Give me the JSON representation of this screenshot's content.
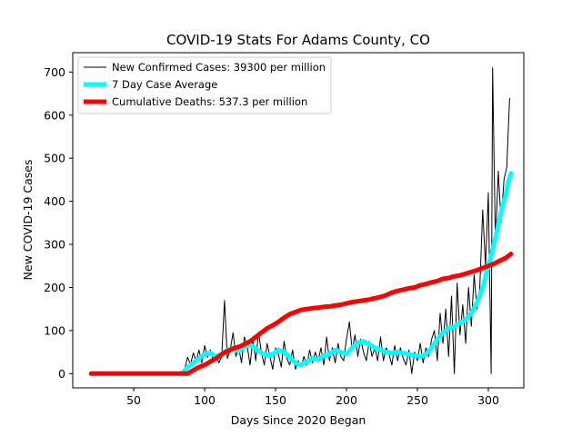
{
  "chart_data": {
    "type": "line",
    "title": "COVID-19 Stats For Adams County, CO",
    "xlabel": "Days Since 2020 Began",
    "ylabel": "New COVID-19 Cases",
    "xlim": [
      7,
      325
    ],
    "ylim": [
      -33,
      745
    ],
    "xticks": [
      50,
      100,
      150,
      200,
      250,
      300
    ],
    "yticks": [
      0,
      100,
      200,
      300,
      400,
      500,
      600,
      700
    ],
    "grid": false,
    "legend_position": "upper-left",
    "series": [
      {
        "name": "New Confirmed Cases: 39300 per million",
        "color": "#000000",
        "points": [
          [
            20,
            0
          ],
          [
            30,
            0
          ],
          [
            40,
            0
          ],
          [
            50,
            0
          ],
          [
            60,
            0
          ],
          [
            70,
            0
          ],
          [
            80,
            0
          ],
          [
            84,
            0
          ],
          [
            86,
            12
          ],
          [
            88,
            38
          ],
          [
            90,
            22
          ],
          [
            92,
            48
          ],
          [
            94,
            30
          ],
          [
            96,
            55
          ],
          [
            98,
            25
          ],
          [
            100,
            65
          ],
          [
            102,
            38
          ],
          [
            104,
            55
          ],
          [
            106,
            30
          ],
          [
            108,
            45
          ],
          [
            110,
            25
          ],
          [
            112,
            40
          ],
          [
            114,
            170
          ],
          [
            116,
            35
          ],
          [
            118,
            55
          ],
          [
            120,
            95
          ],
          [
            122,
            40
          ],
          [
            124,
            60
          ],
          [
            126,
            25
          ],
          [
            128,
            85
          ],
          [
            130,
            65
          ],
          [
            132,
            20
          ],
          [
            134,
            80
          ],
          [
            136,
            30
          ],
          [
            138,
            95
          ],
          [
            140,
            50
          ],
          [
            142,
            20
          ],
          [
            144,
            70
          ],
          [
            146,
            40
          ],
          [
            148,
            10
          ],
          [
            150,
            60
          ],
          [
            152,
            45
          ],
          [
            154,
            15
          ],
          [
            156,
            75
          ],
          [
            158,
            35
          ],
          [
            160,
            20
          ],
          [
            162,
            55
          ],
          [
            164,
            10
          ],
          [
            166,
            30
          ],
          [
            168,
            15
          ],
          [
            170,
            40
          ],
          [
            172,
            20
          ],
          [
            174,
            55
          ],
          [
            176,
            25
          ],
          [
            178,
            50
          ],
          [
            180,
            30
          ],
          [
            182,
            60
          ],
          [
            184,
            20
          ],
          [
            186,
            85
          ],
          [
            188,
            30
          ],
          [
            190,
            60
          ],
          [
            192,
            25
          ],
          [
            194,
            70
          ],
          [
            196,
            40
          ],
          [
            198,
            30
          ],
          [
            200,
            80
          ],
          [
            202,
            120
          ],
          [
            204,
            55
          ],
          [
            206,
            90
          ],
          [
            208,
            40
          ],
          [
            210,
            80
          ],
          [
            212,
            50
          ],
          [
            214,
            30
          ],
          [
            216,
            75
          ],
          [
            218,
            40
          ],
          [
            220,
            60
          ],
          [
            222,
            30
          ],
          [
            224,
            85
          ],
          [
            226,
            30
          ],
          [
            228,
            60
          ],
          [
            230,
            45
          ],
          [
            232,
            20
          ],
          [
            234,
            65
          ],
          [
            236,
            30
          ],
          [
            238,
            60
          ],
          [
            240,
            35
          ],
          [
            242,
            20
          ],
          [
            244,
            55
          ],
          [
            246,
            0
          ],
          [
            248,
            50
          ],
          [
            250,
            30
          ],
          [
            252,
            70
          ],
          [
            254,
            25
          ],
          [
            256,
            60
          ],
          [
            258,
            40
          ],
          [
            260,
            80
          ],
          [
            262,
            100
          ],
          [
            264,
            30
          ],
          [
            266,
            140
          ],
          [
            268,
            70
          ],
          [
            270,
            150
          ],
          [
            272,
            40
          ],
          [
            274,
            180
          ],
          [
            276,
            0
          ],
          [
            278,
            210
          ],
          [
            280,
            90
          ],
          [
            282,
            160
          ],
          [
            284,
            70
          ],
          [
            286,
            200
          ],
          [
            288,
            110
          ],
          [
            290,
            230
          ],
          [
            292,
            150
          ],
          [
            294,
            200
          ],
          [
            296,
            380
          ],
          [
            298,
            250
          ],
          [
            300,
            420
          ],
          [
            302,
            0
          ],
          [
            303,
            710
          ],
          [
            305,
            300
          ],
          [
            307,
            470
          ],
          [
            309,
            350
          ],
          [
            311,
            450
          ],
          [
            313,
            480
          ],
          [
            315,
            640
          ]
        ]
      },
      {
        "name": "7 Day Case Average",
        "color": "#00ffff",
        "points": [
          [
            84,
            0
          ],
          [
            88,
            15
          ],
          [
            92,
            25
          ],
          [
            96,
            35
          ],
          [
            100,
            45
          ],
          [
            104,
            48
          ],
          [
            108,
            40
          ],
          [
            112,
            45
          ],
          [
            116,
            55
          ],
          [
            120,
            58
          ],
          [
            124,
            52
          ],
          [
            128,
            62
          ],
          [
            132,
            68
          ],
          [
            136,
            58
          ],
          [
            140,
            48
          ],
          [
            144,
            42
          ],
          [
            148,
            45
          ],
          [
            152,
            55
          ],
          [
            156,
            50
          ],
          [
            160,
            38
          ],
          [
            164,
            25
          ],
          [
            168,
            20
          ],
          [
            172,
            28
          ],
          [
            176,
            35
          ],
          [
            180,
            32
          ],
          [
            184,
            42
          ],
          [
            188,
            45
          ],
          [
            192,
            55
          ],
          [
            196,
            50
          ],
          [
            200,
            45
          ],
          [
            204,
            60
          ],
          [
            208,
            72
          ],
          [
            212,
            75
          ],
          [
            216,
            68
          ],
          [
            220,
            60
          ],
          [
            224,
            55
          ],
          [
            228,
            50
          ],
          [
            232,
            48
          ],
          [
            236,
            50
          ],
          [
            240,
            48
          ],
          [
            244,
            45
          ],
          [
            248,
            42
          ],
          [
            252,
            40
          ],
          [
            256,
            45
          ],
          [
            260,
            60
          ],
          [
            264,
            80
          ],
          [
            268,
            95
          ],
          [
            272,
            105
          ],
          [
            276,
            110
          ],
          [
            280,
            118
          ],
          [
            284,
            125
          ],
          [
            288,
            140
          ],
          [
            292,
            165
          ],
          [
            296,
            200
          ],
          [
            300,
            250
          ],
          [
            304,
            300
          ],
          [
            308,
            360
          ],
          [
            310,
            390
          ],
          [
            312,
            410
          ],
          [
            314,
            445
          ],
          [
            316,
            465
          ]
        ]
      },
      {
        "name": "Cumulative Deaths: 537.3 per million",
        "color": "#ff0000",
        "points": [
          [
            20,
            0
          ],
          [
            30,
            0
          ],
          [
            40,
            0
          ],
          [
            50,
            0
          ],
          [
            60,
            0
          ],
          [
            70,
            0
          ],
          [
            80,
            0
          ],
          [
            88,
            0
          ],
          [
            92,
            8
          ],
          [
            96,
            15
          ],
          [
            100,
            20
          ],
          [
            104,
            28
          ],
          [
            108,
            35
          ],
          [
            112,
            45
          ],
          [
            116,
            52
          ],
          [
            120,
            58
          ],
          [
            124,
            62
          ],
          [
            128,
            68
          ],
          [
            132,
            75
          ],
          [
            136,
            85
          ],
          [
            140,
            95
          ],
          [
            144,
            105
          ],
          [
            148,
            112
          ],
          [
            152,
            120
          ],
          [
            156,
            130
          ],
          [
            160,
            138
          ],
          [
            164,
            143
          ],
          [
            168,
            148
          ],
          [
            172,
            150
          ],
          [
            176,
            152
          ],
          [
            180,
            153
          ],
          [
            184,
            155
          ],
          [
            188,
            156
          ],
          [
            192,
            158
          ],
          [
            196,
            160
          ],
          [
            200,
            163
          ],
          [
            204,
            166
          ],
          [
            208,
            168
          ],
          [
            212,
            170
          ],
          [
            216,
            172
          ],
          [
            220,
            175
          ],
          [
            224,
            178
          ],
          [
            228,
            182
          ],
          [
            232,
            188
          ],
          [
            236,
            192
          ],
          [
            240,
            195
          ],
          [
            244,
            198
          ],
          [
            248,
            200
          ],
          [
            252,
            205
          ],
          [
            256,
            208
          ],
          [
            260,
            212
          ],
          [
            264,
            215
          ],
          [
            268,
            220
          ],
          [
            272,
            222
          ],
          [
            276,
            226
          ],
          [
            280,
            228
          ],
          [
            284,
            232
          ],
          [
            288,
            236
          ],
          [
            292,
            240
          ],
          [
            296,
            245
          ],
          [
            300,
            250
          ],
          [
            304,
            255
          ],
          [
            308,
            262
          ],
          [
            312,
            268
          ],
          [
            316,
            278
          ]
        ]
      }
    ]
  }
}
